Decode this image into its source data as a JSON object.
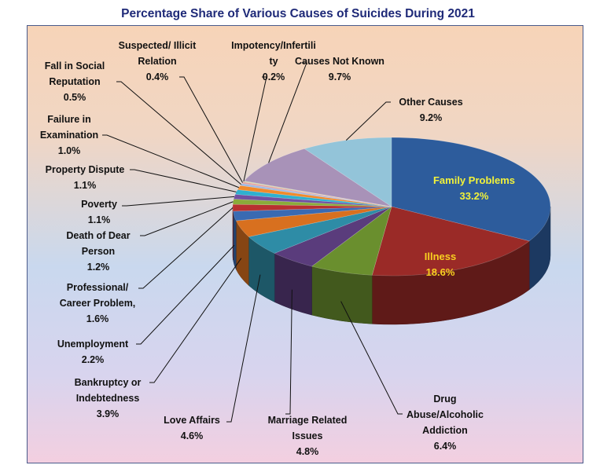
{
  "chart_data": {
    "type": "pie",
    "title": "Percentage Share of Various Causes of Suicides During 2021",
    "start": "12 o'clock, clockwise",
    "slices": [
      {
        "label": [
          "Family Problems"
        ],
        "value": 33.2,
        "value_label": "33.2%",
        "color": "#2d5c9c"
      },
      {
        "label": [
          "Illness"
        ],
        "value": 18.6,
        "value_label": "18.6%",
        "color": "#9a2a27"
      },
      {
        "label": [
          "Drug",
          "Abuse/Alcoholic",
          "Addiction"
        ],
        "value": 6.4,
        "value_label": "6.4%",
        "color": "#6a8f2e"
      },
      {
        "label": [
          "Marriage Related",
          "Issues"
        ],
        "value": 4.8,
        "value_label": "4.8%",
        "color": "#5a3c7c"
      },
      {
        "label": [
          "Love Affairs"
        ],
        "value": 4.6,
        "value_label": "4.6%",
        "color": "#2e8ca6"
      },
      {
        "label": [
          "Bankruptcy or",
          "Indebtedness"
        ],
        "value": 3.9,
        "value_label": "3.9%",
        "color": "#d8701f"
      },
      {
        "label": [
          "Unemployment"
        ],
        "value": 2.2,
        "value_label": "2.2%",
        "color": "#3a6ab2"
      },
      {
        "label": [
          "Professional/",
          "Career Problem,"
        ],
        "value": 1.6,
        "value_label": "1.6%",
        "color": "#b83030"
      },
      {
        "label": [
          "Death of Dear",
          "Person"
        ],
        "value": 1.2,
        "value_label": "1.2%",
        "color": "#8aab3a"
      },
      {
        "label": [
          "Poverty"
        ],
        "value": 1.1,
        "value_label": "1.1%",
        "color": "#7050a2"
      },
      {
        "label": [
          "Property Dispute"
        ],
        "value": 1.1,
        "value_label": "1.1%",
        "color": "#2fb0d0"
      },
      {
        "label": [
          "Failure in",
          "Examination"
        ],
        "value": 1.0,
        "value_label": "1.0%",
        "color": "#f08a2c"
      },
      {
        "label": [
          "Fall in Social",
          "Reputation"
        ],
        "value": 0.5,
        "value_label": "0.5%",
        "color": "#9fb8e2"
      },
      {
        "label": [
          "Suspected/ Illicit",
          "Relation"
        ],
        "value": 0.4,
        "value_label": "0.4%",
        "color": "#e4a4a2"
      },
      {
        "label": [
          "Impotency/Infertili",
          "ty"
        ],
        "value": 0.2,
        "value_label": "0.2%",
        "color": "#cddba6"
      },
      {
        "label": [
          "Causes Not Known"
        ],
        "value": 9.7,
        "value_label": "9.7%",
        "color": "#a892b8"
      },
      {
        "label": [
          "Other Causes"
        ],
        "value": 9.2,
        "value_label": "9.2%",
        "color": "#93c4d9"
      }
    ],
    "inside_label_colors": {
      "Family Problems": "#f2f23a",
      "Illness": "#f8d020"
    }
  }
}
